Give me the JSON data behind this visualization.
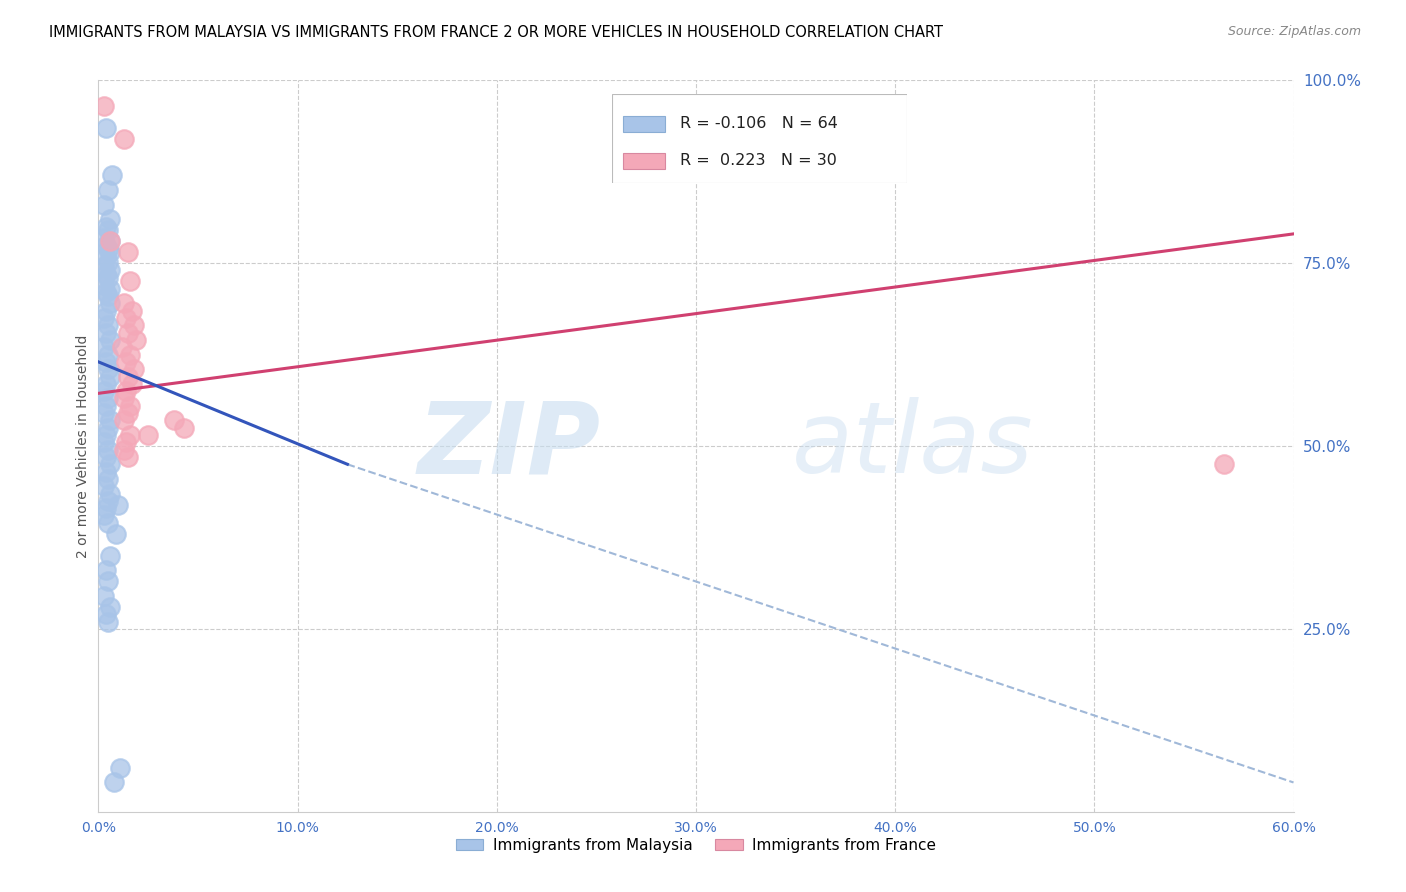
{
  "title": "IMMIGRANTS FROM MALAYSIA VS IMMIGRANTS FROM FRANCE 2 OR MORE VEHICLES IN HOUSEHOLD CORRELATION CHART",
  "source": "Source: ZipAtlas.com",
  "ylabel": "2 or more Vehicles in Household",
  "xmin": 0.0,
  "xmax": 0.6,
  "ymin": 0.0,
  "ymax": 1.0,
  "xtick_labels": [
    "0.0%",
    "10.0%",
    "20.0%",
    "30.0%",
    "40.0%",
    "50.0%",
    "60.0%"
  ],
  "xtick_values": [
    0.0,
    0.1,
    0.2,
    0.3,
    0.4,
    0.5,
    0.6
  ],
  "ytick_labels_right": [
    "25.0%",
    "50.0%",
    "75.0%",
    "100.0%"
  ],
  "ytick_values": [
    0.25,
    0.5,
    0.75,
    1.0
  ],
  "legend_r_malaysia": "-0.106",
  "legend_n_malaysia": "64",
  "legend_r_france": "0.223",
  "legend_n_france": "30",
  "malaysia_color": "#a8c4e8",
  "france_color": "#f4a8b8",
  "malaysia_line_color": "#3355bb",
  "france_line_color": "#d04070",
  "dashed_line_color": "#a0b8d8",
  "malaysia_scatter_x": [
    0.004,
    0.007,
    0.005,
    0.003,
    0.006,
    0.004,
    0.005,
    0.003,
    0.006,
    0.004,
    0.005,
    0.006,
    0.004,
    0.005,
    0.003,
    0.006,
    0.004,
    0.005,
    0.003,
    0.006,
    0.004,
    0.005,
    0.006,
    0.004,
    0.003,
    0.005,
    0.004,
    0.006,
    0.003,
    0.005,
    0.004,
    0.005,
    0.006,
    0.004,
    0.003,
    0.005,
    0.004,
    0.003,
    0.006,
    0.005,
    0.004,
    0.003,
    0.005,
    0.004,
    0.006,
    0.004,
    0.005,
    0.003,
    0.006,
    0.005,
    0.004,
    0.003,
    0.005,
    0.006,
    0.004,
    0.005,
    0.003,
    0.006,
    0.004,
    0.005,
    0.01,
    0.009,
    0.011,
    0.008
  ],
  "malaysia_scatter_y": [
    0.935,
    0.87,
    0.85,
    0.83,
    0.81,
    0.8,
    0.795,
    0.785,
    0.78,
    0.775,
    0.77,
    0.765,
    0.758,
    0.752,
    0.745,
    0.74,
    0.735,
    0.73,
    0.72,
    0.715,
    0.71,
    0.705,
    0.695,
    0.685,
    0.675,
    0.665,
    0.655,
    0.645,
    0.635,
    0.625,
    0.615,
    0.605,
    0.595,
    0.585,
    0.575,
    0.565,
    0.555,
    0.545,
    0.535,
    0.525,
    0.515,
    0.505,
    0.495,
    0.485,
    0.475,
    0.465,
    0.455,
    0.445,
    0.435,
    0.425,
    0.415,
    0.405,
    0.395,
    0.35,
    0.33,
    0.315,
    0.295,
    0.28,
    0.27,
    0.26,
    0.42,
    0.38,
    0.06,
    0.04
  ],
  "france_scatter_x": [
    0.003,
    0.013,
    0.006,
    0.015,
    0.016,
    0.013,
    0.017,
    0.014,
    0.018,
    0.015,
    0.019,
    0.012,
    0.016,
    0.014,
    0.018,
    0.015,
    0.017,
    0.014,
    0.013,
    0.016,
    0.015,
    0.013,
    0.038,
    0.043,
    0.025,
    0.016,
    0.014,
    0.013,
    0.015,
    0.565
  ],
  "france_scatter_y": [
    0.965,
    0.92,
    0.78,
    0.765,
    0.725,
    0.695,
    0.685,
    0.675,
    0.665,
    0.655,
    0.645,
    0.635,
    0.625,
    0.615,
    0.605,
    0.595,
    0.585,
    0.575,
    0.565,
    0.555,
    0.545,
    0.535,
    0.535,
    0.525,
    0.515,
    0.515,
    0.505,
    0.495,
    0.485,
    0.475
  ],
  "malaysia_trendline_x": [
    0.0,
    0.125
  ],
  "malaysia_trendline_y": [
    0.615,
    0.475
  ],
  "france_trendline_x": [
    0.0,
    0.6
  ],
  "france_trendline_y": [
    0.572,
    0.79
  ],
  "dashed_trendline_x": [
    0.125,
    0.6
  ],
  "dashed_trendline_y": [
    0.475,
    0.04
  ]
}
